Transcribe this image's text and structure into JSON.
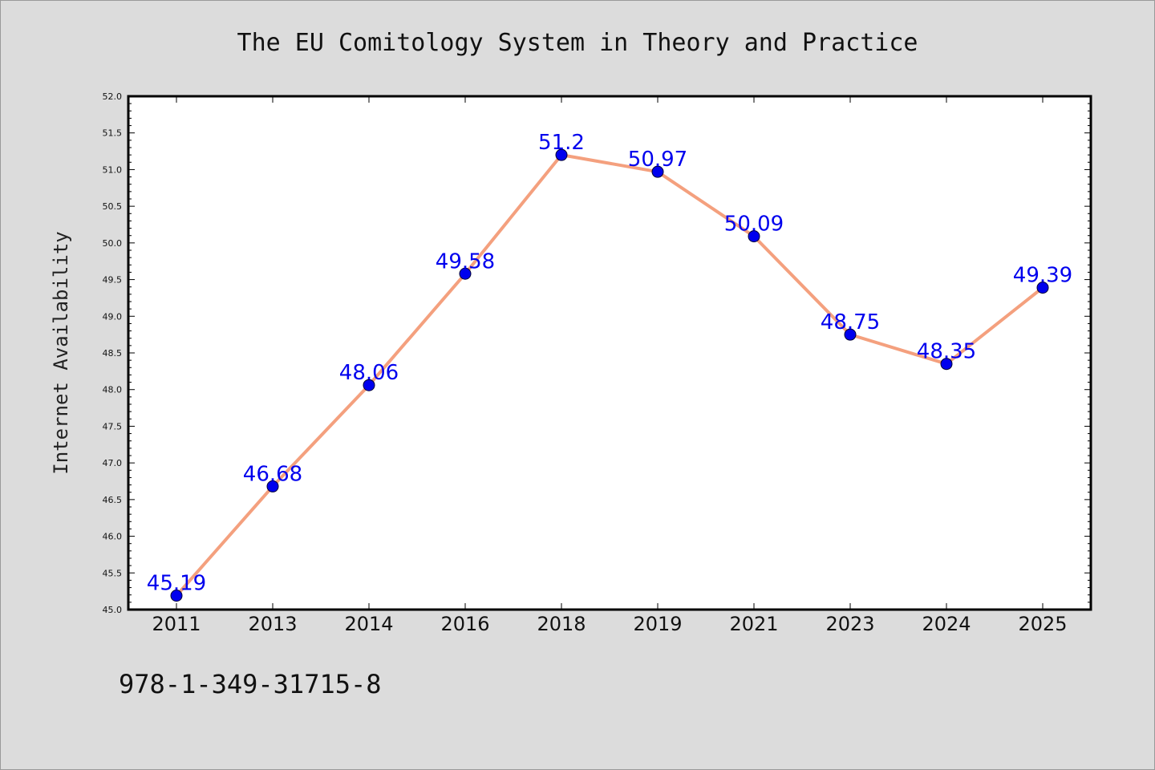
{
  "chart_data": {
    "type": "line",
    "title": "The EU Comitology System in Theory and Practice",
    "xlabel": "",
    "ylabel": "Internet Availability",
    "categories": [
      "2011",
      "2013",
      "2014",
      "2016",
      "2018",
      "2019",
      "2021",
      "2023",
      "2024",
      "2025"
    ],
    "series": [
      {
        "values": [
          45.19,
          46.68,
          48.06,
          49.58,
          51.2,
          50.97,
          50.09,
          48.75,
          48.35,
          49.39
        ],
        "data_labels": [
          "45.19",
          "46.68",
          "48.06",
          "49.58",
          "51.2",
          "50.97",
          "50.09",
          "48.75",
          "48.35",
          "49.39"
        ]
      }
    ],
    "ylim": [
      45.0,
      52.0
    ],
    "yticks": [
      45.0,
      45.5,
      46.0,
      46.5,
      47.0,
      47.5,
      48.0,
      48.5,
      49.0,
      49.5,
      50.0,
      50.5,
      51.0,
      51.5,
      52.0
    ],
    "ytick_labels": [
      "45.0",
      "45.5",
      "46.0",
      "46.5",
      "47.0",
      "47.5",
      "48.0",
      "48.5",
      "49.0",
      "49.5",
      "50.0",
      "50.5",
      "51.0",
      "51.5",
      "52.0"
    ],
    "grid": false,
    "legend": "none",
    "colors": {
      "line": "#f4a07e",
      "marker": "#0000ee",
      "label": "#0000ee",
      "background": "#dcdcdc",
      "plot_background": "#ffffff"
    }
  },
  "footer": {
    "isbn": "978-1-349-31715-8"
  }
}
